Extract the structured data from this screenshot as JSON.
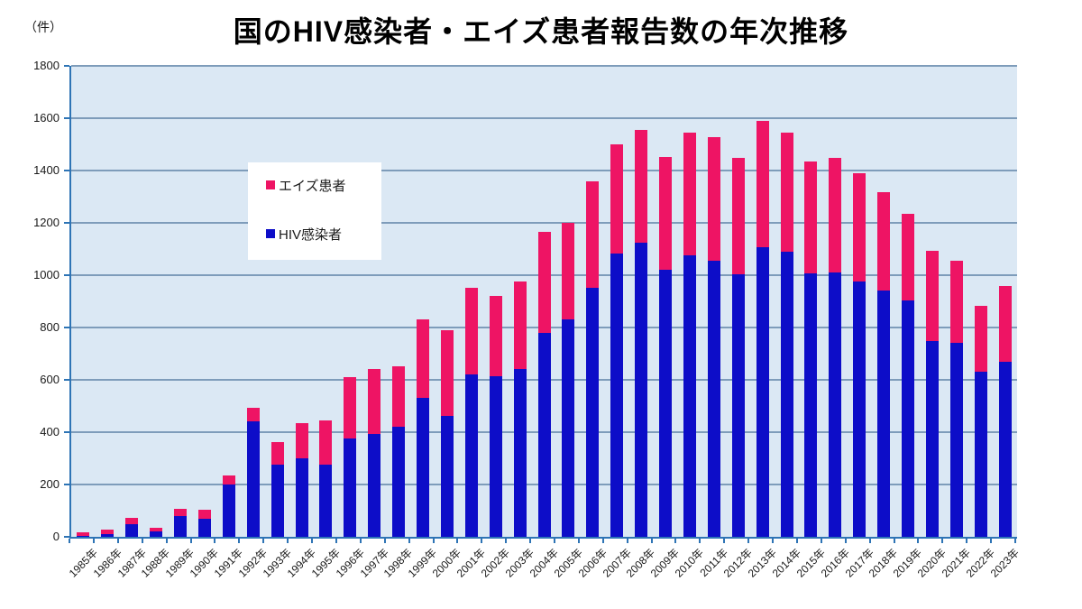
{
  "title": "国のHIV感染者・エイズ患者報告数の年次推移",
  "unit_label": "（件）",
  "legend": [
    {
      "label": "エイズ患者",
      "color": "#EE1464"
    },
    {
      "label": "HIV感染者",
      "color": "#0D0DC8"
    }
  ],
  "colors": {
    "plot_background": "#DBE8F4",
    "gridline": "#7E9CBA",
    "axis": "#2E74B5",
    "hiv_bar": "#0D0DC8",
    "aids_bar": "#EE1464"
  },
  "chart_data": {
    "type": "bar",
    "stacked": true,
    "title": "国のHIV感染者・エイズ患者報告数の年次推移",
    "xlabel": "",
    "ylabel": "（件）",
    "ylim": [
      0,
      1800
    ],
    "ytick_step": 200,
    "grid": true,
    "legend_position": "upper-left-inside",
    "categories": [
      "1985年",
      "1986年",
      "1987年",
      "1988年",
      "1989年",
      "1990年",
      "1991年",
      "1992年",
      "1993年",
      "1994年",
      "1995年",
      "1996年",
      "1997年",
      "1998年",
      "1999年",
      "2000年",
      "2001年",
      "2002年",
      "2003年",
      "2004年",
      "2005年",
      "2006年",
      "2007年",
      "2008年",
      "2009年",
      "2010年",
      "2011年",
      "2012年",
      "2013年",
      "2014年",
      "2015年",
      "2016年",
      "2017年",
      "2018年",
      "2019年",
      "2020年",
      "2021年",
      "2022年",
      "2023年"
    ],
    "series": [
      {
        "name": "HIV感染者",
        "color": "#0D0DC8",
        "values": [
          5,
          12,
          49,
          22,
          81,
          68,
          199,
          440,
          276,
          300,
          277,
          377,
          393,
          422,
          530,
          462,
          621,
          614,
          640,
          780,
          832,
          952,
          1082,
          1126,
          1021,
          1075,
          1056,
          1002,
          1106,
          1091,
          1006,
          1011,
          976,
          940,
          903,
          750,
          742,
          632,
          669
        ]
      },
      {
        "name": "エイズ患者",
        "color": "#EE1464",
        "values": [
          12,
          15,
          22,
          12,
          25,
          34,
          36,
          52,
          88,
          136,
          169,
          233,
          250,
          231,
          300,
          329,
          332,
          308,
          336,
          385,
          367,
          406,
          418,
          431,
          431,
          469,
          473,
          447,
          484,
          455,
          428,
          437,
          413,
          377,
          333,
          345,
          315,
          252,
          291
        ]
      }
    ]
  }
}
